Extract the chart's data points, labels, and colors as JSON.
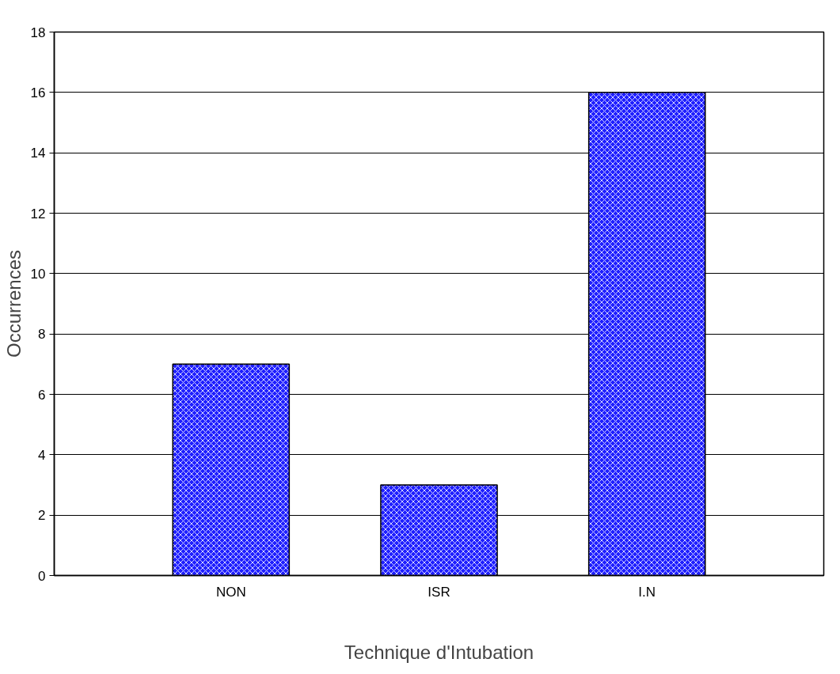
{
  "chart_data": {
    "type": "bar",
    "xlabel": "Technique d'Intubation",
    "ylabel": "Occurrences",
    "categories": [
      "NON",
      "ISR",
      "I.N"
    ],
    "values": [
      7,
      3,
      16
    ],
    "color": "#1f1fff",
    "ylim": [
      0,
      18
    ],
    "yticks": [
      0,
      2,
      4,
      6,
      8,
      10,
      12,
      14,
      16,
      18
    ],
    "grid": "y"
  }
}
